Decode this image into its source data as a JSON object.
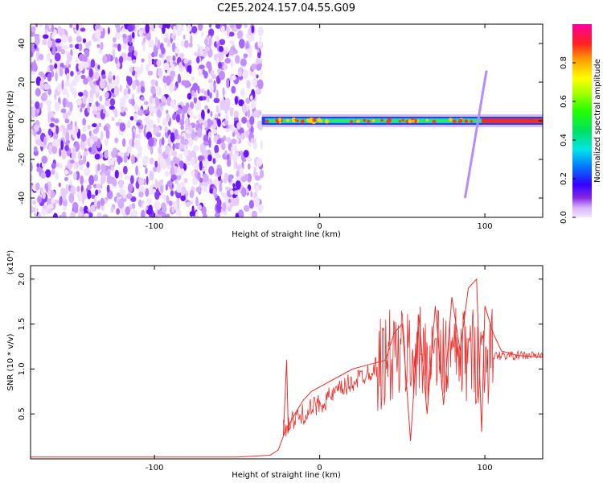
{
  "title": "C2E5.2024.157.04.55.G09",
  "colors": {
    "snr_line": "#e8312e",
    "axis": "#000000",
    "track": "#e8312e"
  },
  "colorbar": {
    "label": "Normalized spectral amplitude",
    "ticks": [
      "0.0",
      "0.2",
      "0.4",
      "0.6",
      "0.8"
    ],
    "tick_values": [
      0.0,
      0.2,
      0.4,
      0.6,
      0.8
    ],
    "range": [
      0,
      1
    ],
    "colormap": "hsv-reversed"
  },
  "chart_data": [
    {
      "type": "heatmap",
      "title": "C2E5.2024.157.04.55.G09",
      "xlabel": "Height of straight line (km)",
      "ylabel": "Frequency (Hz)",
      "xlim": [
        -175,
        135
      ],
      "ylim": [
        -50,
        50
      ],
      "xticks": [
        -100,
        0,
        100
      ],
      "xtick_labels": [
        "-100",
        "0",
        "100"
      ],
      "yticks": [
        -40,
        -20,
        0,
        20,
        40
      ],
      "ytick_labels": [
        "-40",
        "-20",
        "0",
        "20",
        "40"
      ],
      "noise_region_x": [
        -175,
        -35
      ],
      "signal_track": {
        "x_start": -35,
        "x_end": 135,
        "frequency_hz": 0,
        "points": [
          {
            "x": -33,
            "y": -2
          },
          {
            "x": -25,
            "y": -2
          },
          {
            "x": -15,
            "y": 0
          },
          {
            "x": 0,
            "y": 0
          },
          {
            "x": 20,
            "y": -1
          },
          {
            "x": 40,
            "y": -1
          },
          {
            "x": 60,
            "y": -1
          },
          {
            "x": 80,
            "y": -2
          },
          {
            "x": 95,
            "y": -1
          },
          {
            "x": 100,
            "y": -1
          },
          {
            "x": 135,
            "y": -1
          }
        ]
      },
      "legend": "none"
    },
    {
      "type": "line",
      "title": "",
      "xlabel": "Height of straight line (km)",
      "ylabel": "SNR (10 * v/v)",
      "y_multiplier": "(x10⁴)",
      "xlim": [
        -175,
        135
      ],
      "ylim": [
        0,
        2.15
      ],
      "xticks": [
        -100,
        0,
        100
      ],
      "xtick_labels": [
        "-100",
        "0",
        "100"
      ],
      "yticks": [
        0.5,
        1.0,
        1.5,
        2.0
      ],
      "ytick_labels": [
        "0.5",
        "1.0",
        "1.5",
        "2.0"
      ],
      "series": [
        {
          "x": [
            -175,
            -150,
            -100,
            -50,
            -30,
            -25,
            -22,
            -20,
            -19,
            -18,
            -15,
            -10,
            -5,
            0,
            10,
            20,
            30,
            40,
            45,
            50,
            55,
            60,
            65,
            70,
            75,
            80,
            85,
            90,
            95,
            98,
            100,
            105,
            110,
            120,
            135
          ],
          "y": [
            0.02,
            0.02,
            0.02,
            0.02,
            0.04,
            0.1,
            0.25,
            1.1,
            0.3,
            0.4,
            0.5,
            0.65,
            0.75,
            0.8,
            0.9,
            1.0,
            1.05,
            1.1,
            1.4,
            1.5,
            0.2,
            1.6,
            0.5,
            1.7,
            0.6,
            1.8,
            1.2,
            1.9,
            2.0,
            0.3,
            1.7,
            1.4,
            1.2,
            1.15,
            1.13
          ]
        }
      ],
      "legend": "none"
    }
  ]
}
